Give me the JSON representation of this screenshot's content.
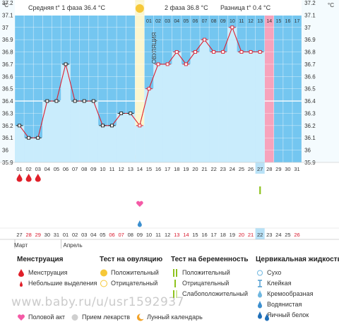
{
  "chart_data": {
    "type": "line",
    "unit": "°C",
    "header": {
      "phase1": "Средняя t° 1 фаза 36.4 °C",
      "phase2": "2 фаза 36.8 °C",
      "diff": "Разница t° 0.4 °C"
    },
    "ovulation_label": "ОВУЛЯЦИЯ",
    "ovulation_index": 13,
    "ylim": [
      35.9,
      37.2
    ],
    "yticks": [
      "37.2",
      "37.1",
      "37",
      "36.9",
      "36.8",
      "36.7",
      "36.6",
      "36.5",
      "36.4",
      "36.3",
      "36.2",
      "36.1",
      "36",
      "35.9"
    ],
    "coverline": 36.4,
    "cycle_days": [
      "01",
      "02",
      "03",
      "04",
      "05",
      "06",
      "07",
      "08",
      "09",
      "10",
      "11",
      "12",
      "13",
      "14",
      "15",
      "16",
      "17",
      "18",
      "19",
      "20",
      "21",
      "22",
      "23",
      "24",
      "25",
      "26",
      "27",
      "28",
      "29",
      "30",
      "31"
    ],
    "phase2_day_labels": [
      "01",
      "02",
      "03",
      "04",
      "05",
      "06",
      "07",
      "08",
      "09",
      "10",
      "11",
      "12",
      "13",
      "14",
      "15",
      "16",
      "17"
    ],
    "temperatures": [
      36.2,
      36.1,
      36.1,
      36.4,
      36.4,
      36.7,
      36.4,
      36.4,
      36.4,
      36.2,
      36.2,
      36.3,
      36.3,
      36.2,
      36.5,
      36.7,
      36.7,
      36.8,
      36.7,
      36.8,
      36.9,
      36.8,
      36.8,
      37.0,
      36.8,
      36.8,
      36.8,
      null,
      null,
      null,
      null
    ],
    "highlight_day_index": 26,
    "pink_column_index": 27,
    "menstruation_days": [
      0,
      1,
      2
    ],
    "intercourse_day_index": 13,
    "waterdrop_day_index": 13,
    "pregnancy_test_day_index": 26,
    "calendar_dates": [
      "27",
      "28",
      "29",
      "30",
      "31",
      "01",
      "02",
      "03",
      "04",
      "05",
      "06",
      "07",
      "08",
      "09",
      "10",
      "11",
      "12",
      "13",
      "14",
      "15",
      "16",
      "17",
      "18",
      "19",
      "20",
      "21",
      "22",
      "23",
      "24",
      "25",
      "26"
    ],
    "red_date_indices": [
      1,
      2,
      10,
      11,
      17,
      18,
      24,
      25,
      30
    ],
    "months": [
      {
        "label": "Март",
        "start_index": 0
      },
      {
        "label": "Апрель",
        "start_index": 5
      }
    ]
  },
  "legend": {
    "menstruation": {
      "title": "Менструация",
      "items": [
        "Менструация",
        "Небольшие выделения"
      ]
    },
    "ovulation_test": {
      "title": "Тест на овуляцию",
      "items": [
        "Положительный",
        "Отрицательный"
      ]
    },
    "pregnancy_test": {
      "title": "Тест на беременность",
      "items": [
        "Положительный",
        "Отрицательный",
        "Слабоположительный"
      ]
    },
    "cervical": {
      "title": "Цервикальная жидкость",
      "items": [
        "Сухо",
        "Клейкая",
        "Кремообразная",
        "Водянистая",
        "Яичный белок"
      ]
    },
    "bottom": [
      "Половой акт",
      "Прием лекарств",
      "Лунный календарь"
    ]
  },
  "watermark": "www.baby.ru/u/usr1592937",
  "colors": {
    "blue_bg": "#74c6f0",
    "area": "#c9ecfc",
    "line": "#dc2030",
    "ovulation_col": "#fbf6cf",
    "pink_col": "#f7a3bc",
    "highlight": "#b9e2f7",
    "sun": "#f6c838",
    "drop": "#e0202a",
    "heart": "#f45aa6",
    "test_green": "#8ec21d"
  }
}
